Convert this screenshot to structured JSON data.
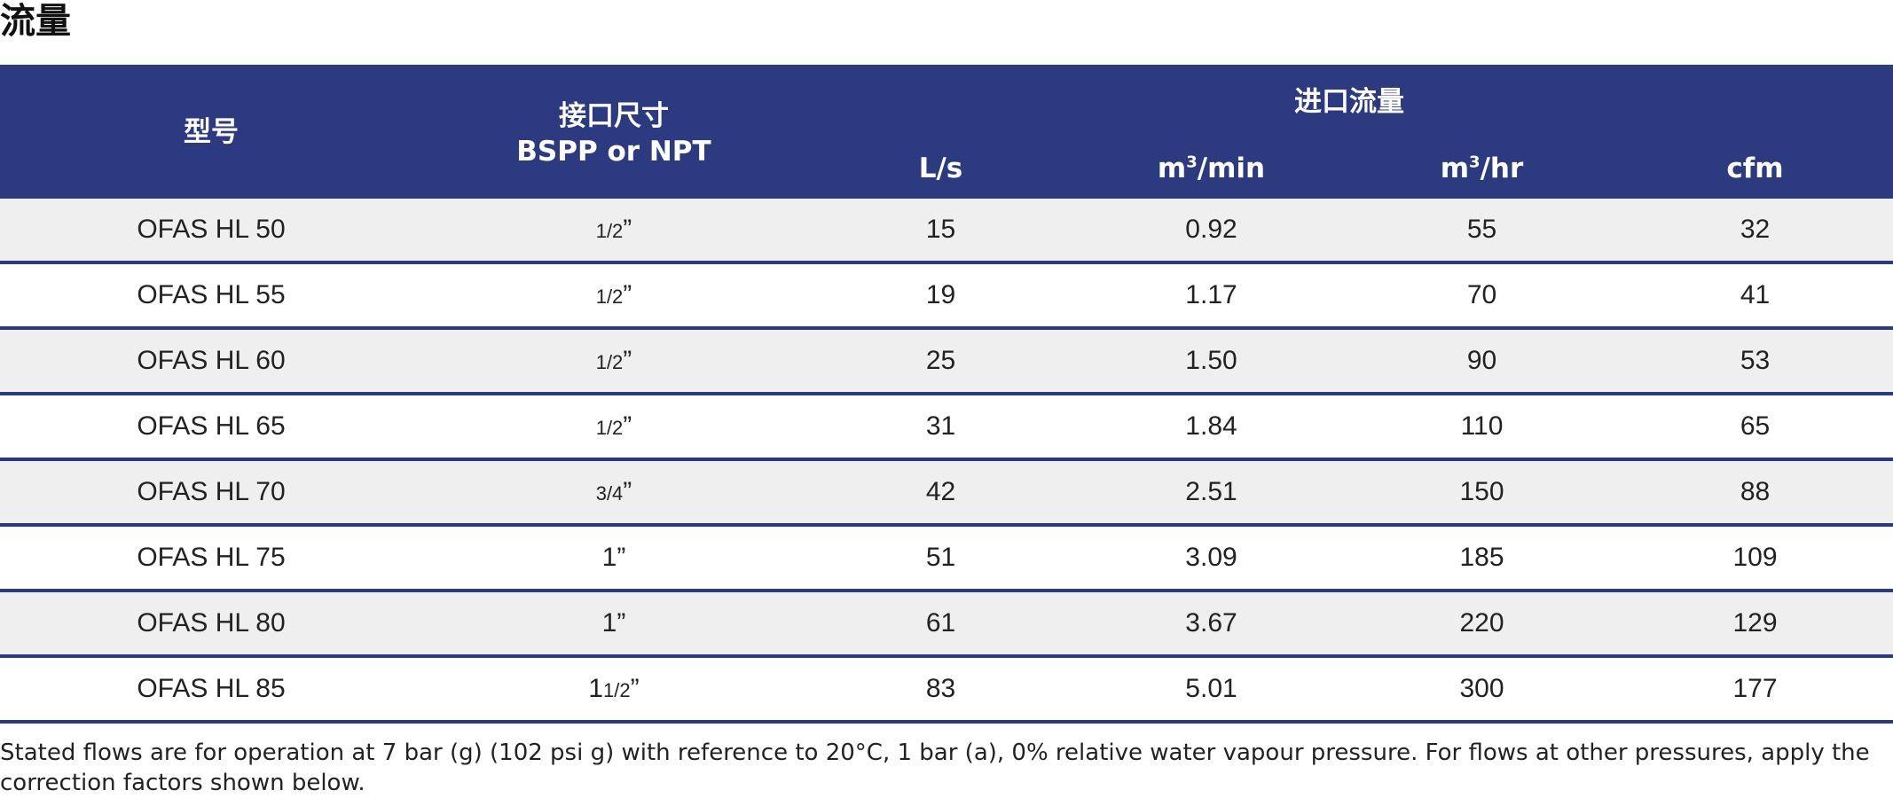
{
  "title": "流量",
  "table": {
    "header": {
      "model": "型号",
      "port_size_line1": "接口尺寸",
      "port_size_line2": "BSPP or NPT",
      "inlet_flow": "进口流量",
      "units": {
        "ls": "L/s",
        "m3min_prefix": "m",
        "m3min_sup": "3",
        "m3min_suffix": "/min",
        "m3hr_prefix": "m",
        "m3hr_sup": "3",
        "m3hr_suffix": "/hr",
        "cfm": "cfm"
      }
    },
    "rows": [
      {
        "model": "OFAS HL 50",
        "size_whole": "",
        "size_frac": "1/2",
        "size_mark": "”",
        "ls": "15",
        "m3min": "0.92",
        "m3hr": "55",
        "cfm": "32"
      },
      {
        "model": "OFAS HL 55",
        "size_whole": "",
        "size_frac": "1/2",
        "size_mark": "”",
        "ls": "19",
        "m3min": "1.17",
        "m3hr": "70",
        "cfm": "41"
      },
      {
        "model": "OFAS HL 60",
        "size_whole": "",
        "size_frac": "1/2",
        "size_mark": "”",
        "ls": "25",
        "m3min": "1.50",
        "m3hr": "90",
        "cfm": "53"
      },
      {
        "model": "OFAS HL 65",
        "size_whole": "",
        "size_frac": "1/2",
        "size_mark": "”",
        "ls": "31",
        "m3min": "1.84",
        "m3hr": "110",
        "cfm": "65"
      },
      {
        "model": "OFAS HL 70",
        "size_whole": "",
        "size_frac": "3/4",
        "size_mark": "”",
        "ls": "42",
        "m3min": "2.51",
        "m3hr": "150",
        "cfm": "88"
      },
      {
        "model": "OFAS HL 75",
        "size_whole": "1",
        "size_frac": "",
        "size_mark": "”",
        "ls": "51",
        "m3min": "3.09",
        "m3hr": "185",
        "cfm": "109"
      },
      {
        "model": "OFAS HL 80",
        "size_whole": "1",
        "size_frac": "",
        "size_mark": "”",
        "ls": "61",
        "m3min": "3.67",
        "m3hr": "220",
        "cfm": "129"
      },
      {
        "model": "OFAS HL 85",
        "size_whole": "1",
        "size_frac": "1/2",
        "size_mark": "”",
        "ls": "83",
        "m3min": "5.01",
        "m3hr": "300",
        "cfm": "177"
      }
    ]
  },
  "footnote": "Stated flows are for operation at 7 bar (g) (102 psi g) with reference to 20°C, 1 bar (a), 0% relative water vapour pressure. For flows at other pressures, apply the correction factors shown below.",
  "colors": {
    "header_bg": "#2c3a7f",
    "row_divider": "#2c3a7f",
    "shaded_row": "#efefef"
  }
}
